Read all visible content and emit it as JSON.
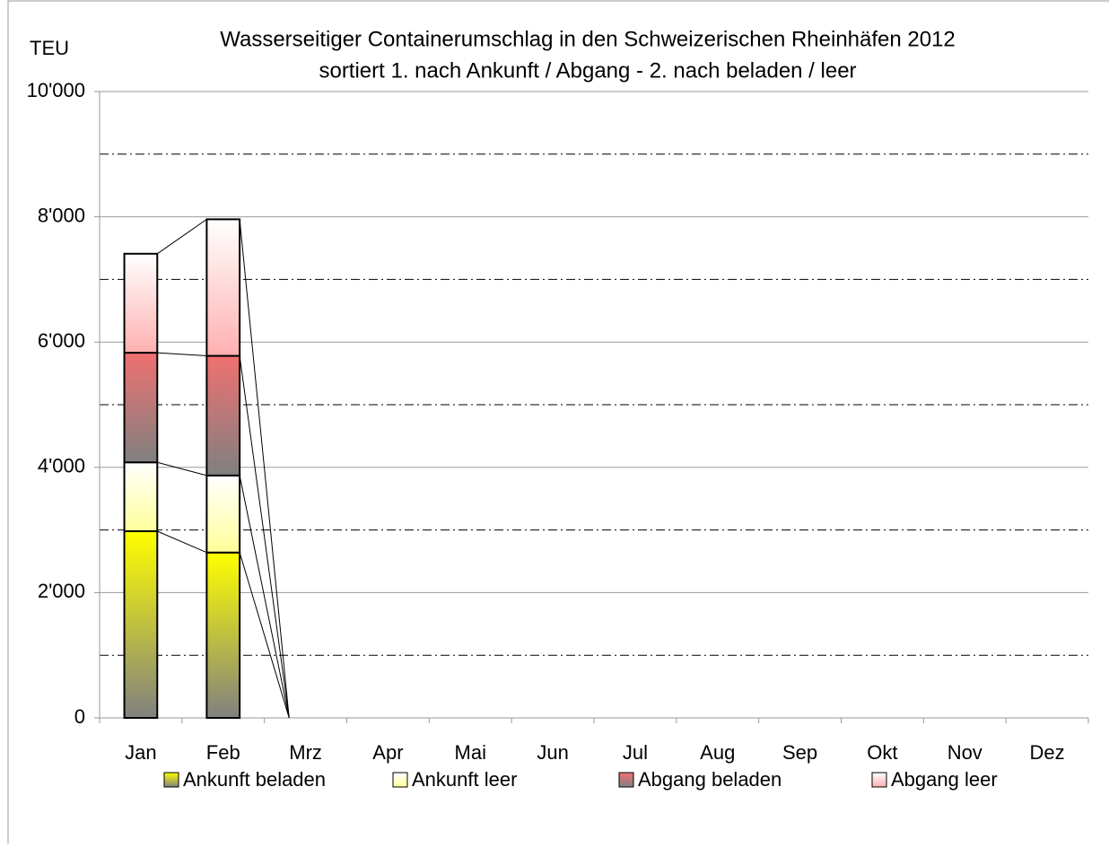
{
  "chart_data": {
    "type": "stacked_bar",
    "title": "Wasserseitiger Containerumschlag in den Schweizerischen Rheinhäfen 2012",
    "subtitle": "sortiert 1. nach Ankunft / Abgang - 2. nach beladen / leer",
    "y_label": "TEU",
    "categories": [
      "Jan",
      "Feb",
      "Mrz",
      "Apr",
      "Mai",
      "Jun",
      "Jul",
      "Aug",
      "Sep",
      "Okt",
      "Nov",
      "Dez"
    ],
    "series": [
      {
        "name": "Ankunft beladen",
        "color": "#ffff00",
        "values": [
          2980,
          2640,
          0,
          null,
          null,
          null,
          null,
          null,
          null,
          null,
          null,
          null
        ]
      },
      {
        "name": "Ankunft leer",
        "color": "#ffff99",
        "values": [
          1100,
          1230,
          0,
          null,
          null,
          null,
          null,
          null,
          null,
          null,
          null,
          null
        ]
      },
      {
        "name": "Abgang beladen",
        "color": "#f07070",
        "values": [
          1750,
          1910,
          0,
          null,
          null,
          null,
          null,
          null,
          null,
          null,
          null,
          null
        ]
      },
      {
        "name": "Abgang leer",
        "color": "#ffb0b0",
        "values": [
          1580,
          2180,
          0,
          null,
          null,
          null,
          null,
          null,
          null,
          null,
          null,
          null
        ]
      }
    ],
    "ylim": [
      0,
      10000
    ],
    "yticks": [
      0,
      {
        "value": 2000,
        "label": "2'000"
      },
      {
        "value": 4000,
        "label": "4'000"
      },
      {
        "value": 6000,
        "label": "6'000"
      },
      {
        "value": 8000,
        "label": "8'000"
      },
      {
        "value": 10000,
        "label": "10'000"
      }
    ],
    "minor_grid": [
      1000,
      3000,
      5000,
      7000,
      9000
    ],
    "grid": true,
    "legend": "bottom"
  }
}
